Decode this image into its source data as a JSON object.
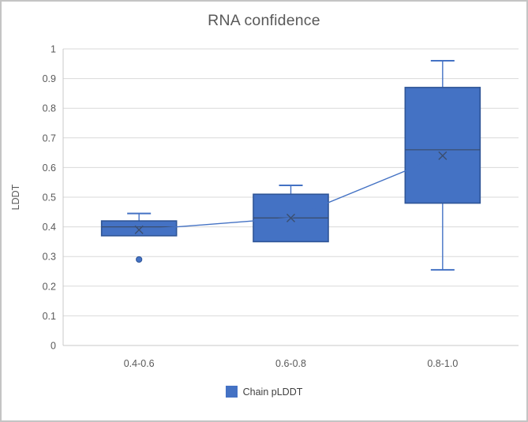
{
  "chart_data": {
    "type": "boxplot",
    "title": "RNA confidence",
    "ylabel": "LDDT",
    "xlabel": "",
    "categories": [
      "0.4-0.6",
      "0.6-0.8",
      "0.8-1.0"
    ],
    "y_ticks": [
      "0",
      "0.1",
      "0.2",
      "0.3",
      "0.4",
      "0.5",
      "0.6",
      "0.7",
      "0.8",
      "0.9",
      "1"
    ],
    "ylim": [
      0,
      1
    ],
    "grid": true,
    "legend": {
      "position": "bottom",
      "entries": [
        {
          "label": "Chain pLDDT",
          "color": "#4472C4"
        }
      ]
    },
    "mean_line_shown": true,
    "series": [
      {
        "name": "Chain pLDDT",
        "boxes": [
          {
            "category": "0.4-0.6",
            "whisker_low": null,
            "q1": 0.37,
            "median": 0.4,
            "mean": 0.39,
            "q3": 0.42,
            "whisker_high": 0.445,
            "outliers": [
              0.29
            ]
          },
          {
            "category": "0.6-0.8",
            "whisker_low": null,
            "q1": 0.35,
            "median": 0.43,
            "mean": 0.43,
            "q3": 0.51,
            "whisker_high": 0.54,
            "outliers": []
          },
          {
            "category": "0.8-1.0",
            "whisker_low": 0.255,
            "q1": 0.48,
            "median": 0.66,
            "mean": 0.64,
            "q3": 0.87,
            "whisker_high": 0.96,
            "outliers": []
          }
        ]
      }
    ],
    "colors": {
      "box_fill": "#4472C4",
      "box_border": "#2F5597",
      "median": "#3B4E6F",
      "whisker": "#4472C4",
      "mean_line": "#4472C4",
      "gridline": "#D9D9D9",
      "axis_line": "#C9C9C9",
      "title_text": "#595959",
      "tick_text": "#595959",
      "legend_text": "#404040"
    }
  }
}
